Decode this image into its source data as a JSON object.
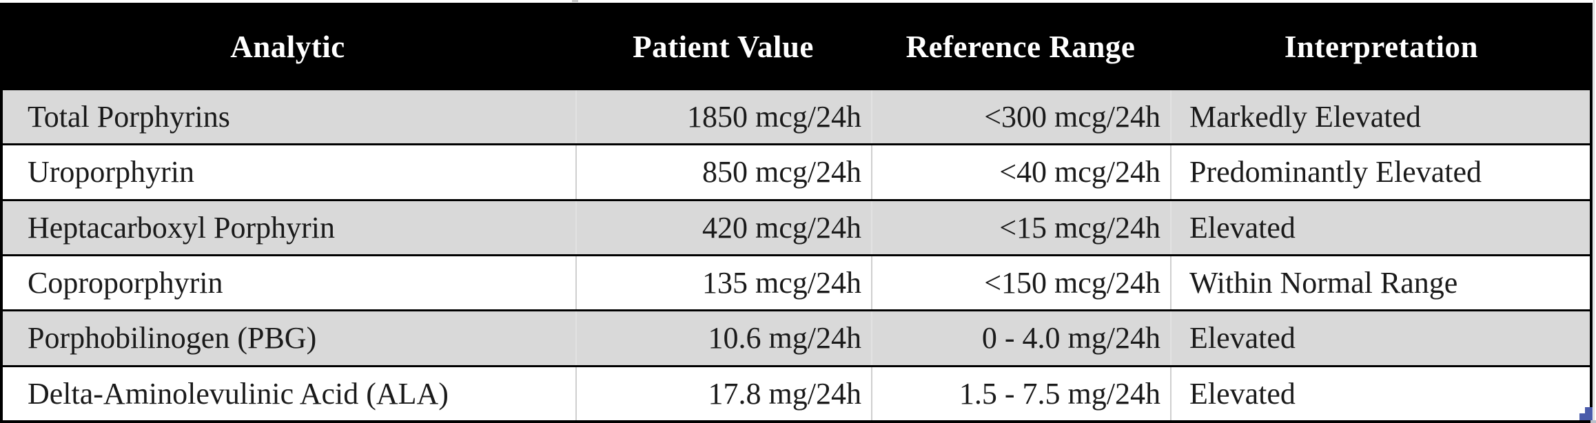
{
  "table": {
    "columns": [
      {
        "label": "Analytic",
        "align": "left"
      },
      {
        "label": "Patient Value",
        "align": "right"
      },
      {
        "label": "Reference Range",
        "align": "right"
      },
      {
        "label": "Interpretation",
        "align": "left"
      }
    ],
    "rows": [
      [
        "Total Porphyrins",
        "1850 mcg/24h",
        "<300 mcg/24h",
        "Markedly Elevated"
      ],
      [
        "Uroporphyrin",
        "850 mcg/24h",
        "<40 mcg/24h",
        "Predominantly Elevated"
      ],
      [
        "Heptacarboxyl Porphyrin",
        "420 mcg/24h",
        "<15 mcg/24h",
        "Elevated"
      ],
      [
        "Coproporphyrin",
        "135 mcg/24h",
        "<150 mcg/24h",
        "Within Normal Range"
      ],
      [
        "Porphobilinogen (PBG)",
        "10.6 mg/24h",
        "0 - 4.0 mg/24h",
        "Elevated"
      ],
      [
        "Delta-Aminolevulinic Acid (ALA)",
        "17.8 mg/24h",
        "1.5 - 7.5 mg/24h",
        "Elevated"
      ]
    ]
  },
  "colors": {
    "header_bg": "#000000",
    "header_text": "#ffffff",
    "row_alt_bg": "#d9d9d9",
    "row_bg": "#ffffff",
    "body_text": "#1a1a1a",
    "grid_line": "#000000",
    "resize_handle": "#4a5baa"
  }
}
